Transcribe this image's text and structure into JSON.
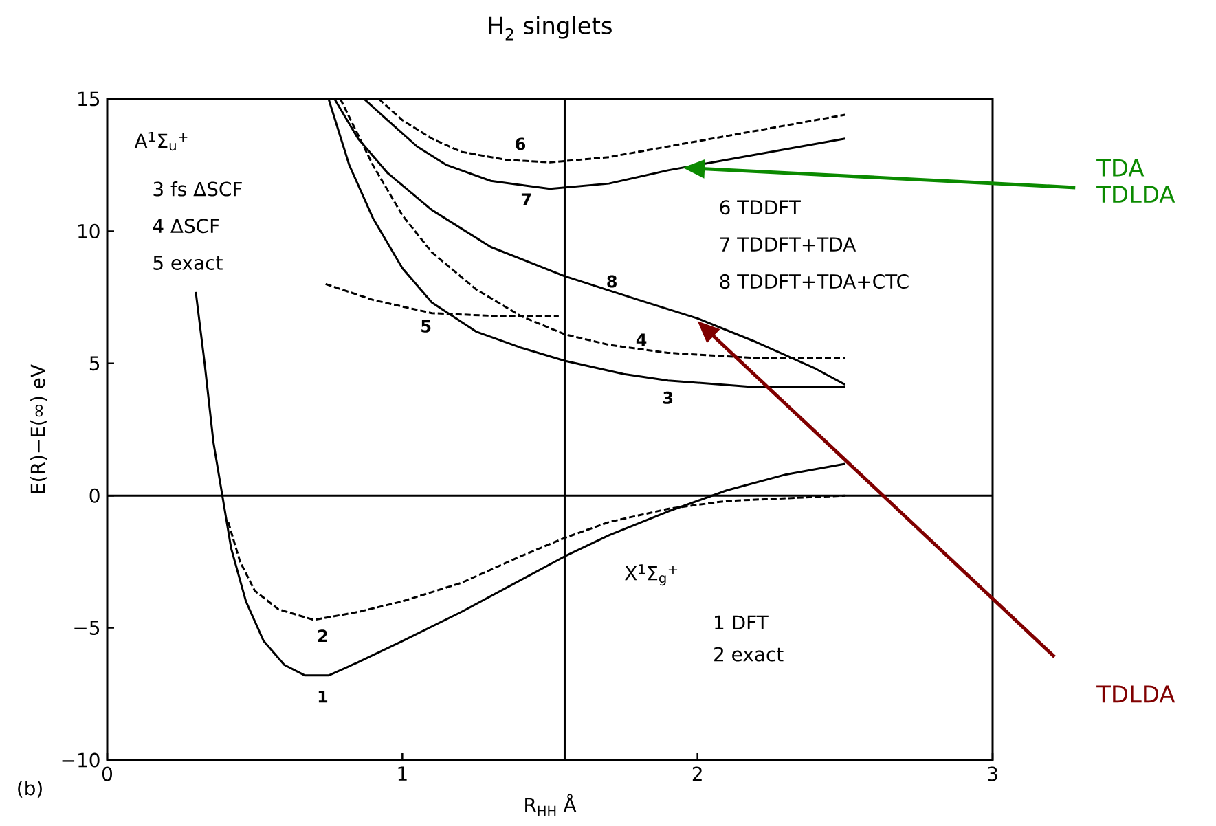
{
  "chart_data": {
    "type": "line",
    "title": "H$_{2}$ singlets",
    "xlabel": "R$_{HH}$ Å",
    "ylabel": "E(R)−E(∞) eV",
    "xlim": [
      0,
      3
    ],
    "ylim": [
      -10,
      15
    ],
    "xticks": [
      0,
      1,
      2,
      3
    ],
    "yticks": [
      {
        "value": -10,
        "label": "−10"
      },
      {
        "value": -5,
        "label": "−5"
      },
      0,
      5,
      10,
      15
    ],
    "series": [
      {
        "color": "#000000",
        "line_style": "solid",
        "x": [
          0.3,
          0.33,
          0.36,
          0.39,
          0.42,
          0.47,
          0.53,
          0.6,
          0.67,
          0.75,
          0.85,
          1.0,
          1.2,
          1.4,
          1.55,
          1.7,
          1.9,
          2.1,
          2.3,
          2.5
        ],
        "values": [
          7.7,
          5,
          2,
          0,
          -2,
          -4,
          -5.5,
          -6.4,
          -6.8,
          -6.8,
          -6.3,
          -5.5,
          -4.4,
          -3.2,
          -2.3,
          -1.5,
          -0.6,
          0.2,
          0.8,
          1.2
        ]
      },
      {
        "color": "#000000",
        "line_style": "dashed",
        "x": [
          0.41,
          0.45,
          0.5,
          0.58,
          0.7,
          0.85,
          1.0,
          1.2,
          1.4,
          1.55,
          1.7,
          1.9,
          2.1,
          2.3,
          2.5
        ],
        "values": [
          -1,
          -2.5,
          -3.6,
          -4.3,
          -4.7,
          -4.4,
          -4.0,
          -3.3,
          -2.3,
          -1.6,
          -1.0,
          -0.5,
          -0.2,
          -0.1,
          0
        ]
      },
      {
        "color": "#000000",
        "line_style": "solid",
        "x": [
          0.75,
          0.82,
          0.9,
          1.0,
          1.1,
          1.25,
          1.4,
          1.55,
          1.75,
          1.9,
          2.2,
          2.5
        ],
        "values": [
          15,
          12.5,
          10.5,
          8.6,
          7.3,
          6.2,
          5.6,
          5.1,
          4.6,
          4.35,
          4.1,
          4.1
        ]
      },
      {
        "color": "#000000",
        "line_style": "dashed",
        "x": [
          0.79,
          0.9,
          1.0,
          1.1,
          1.25,
          1.4,
          1.55,
          1.7,
          1.9,
          2.2,
          2.5
        ],
        "values": [
          15,
          12.5,
          10.6,
          9.2,
          7.8,
          6.8,
          6.1,
          5.7,
          5.4,
          5.2,
          5.2
        ]
      },
      {
        "color": "#000000",
        "line_style": "dashed",
        "x": [
          0.74,
          0.9,
          1.1,
          1.3,
          1.53
        ],
        "values": [
          8.0,
          7.4,
          6.9,
          6.8,
          6.8
        ]
      },
      {
        "color": "#000000",
        "line_style": "dashed",
        "x": [
          0.92,
          1.0,
          1.1,
          1.2,
          1.35,
          1.5,
          1.7,
          1.9,
          2.1,
          2.3,
          2.5
        ],
        "values": [
          15,
          14.2,
          13.5,
          13.0,
          12.7,
          12.6,
          12.8,
          13.2,
          13.6,
          14.0,
          14.4
        ]
      },
      {
        "color": "#000000",
        "line_style": "solid",
        "x": [
          0.87,
          0.95,
          1.05,
          1.15,
          1.3,
          1.5,
          1.7,
          1.9,
          2.1,
          2.3,
          2.5
        ],
        "values": [
          15,
          14.2,
          13.2,
          12.5,
          11.9,
          11.6,
          11.8,
          12.3,
          12.7,
          13.1,
          13.5
        ]
      },
      {
        "color": "#000000",
        "line_style": "solid",
        "x": [
          0.77,
          0.85,
          0.95,
          1.1,
          1.3,
          1.55,
          1.8,
          2.0,
          2.2,
          2.4,
          2.5
        ],
        "values": [
          15,
          13.5,
          12.2,
          10.8,
          9.4,
          8.3,
          7.4,
          6.7,
          5.8,
          4.8,
          4.2
        ]
      }
    ],
    "ref_lines": [
      {
        "axis": "x",
        "value": 1.55
      },
      {
        "axis": "y",
        "value": 0
      }
    ],
    "annotations": [
      "A$^{1}$Σ$_{u}$$^{+}$",
      "3 fs ΔSCF",
      "4 ΔSCF",
      "5 exact",
      "6 TDDFT",
      "7 TDDFT+TDA",
      "8 TDDFT+TDA+CTC",
      "X$^{1}$Σ$_{g}$$^{+}$",
      "1 DFT",
      "2 exact",
      "(b)",
      "1",
      "2",
      "5",
      "4",
      "3",
      "8",
      "7",
      "6",
      "TDA",
      "TDLDA",
      "TDLDA"
    ]
  }
}
